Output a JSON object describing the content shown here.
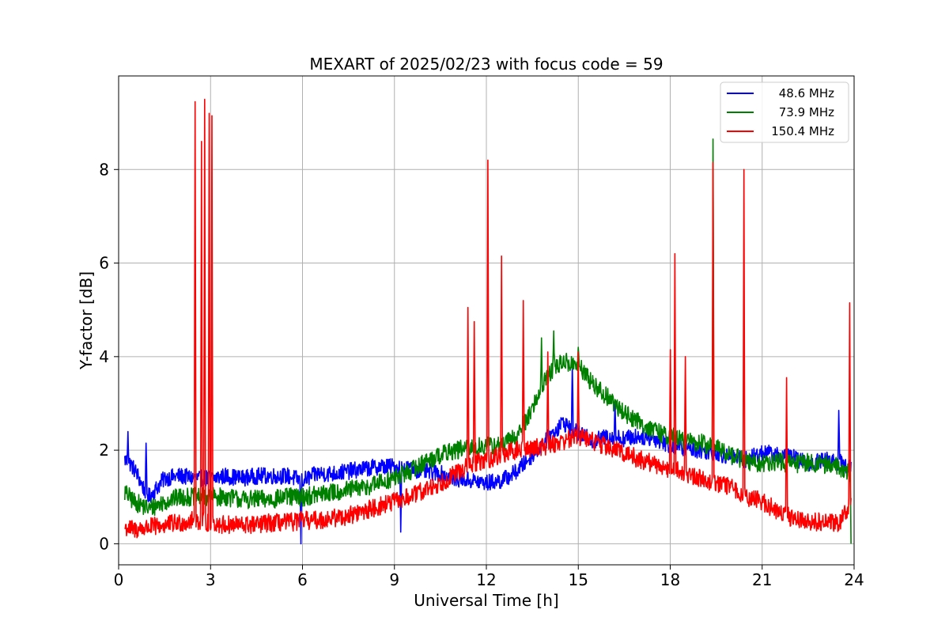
{
  "chart_data": {
    "type": "line",
    "title": "MEXART of 2025/02/23 with focus code = 59",
    "xlabel": "Universal Time [h]",
    "ylabel": "Y-factor [dB]",
    "xlim": [
      0,
      24
    ],
    "ylim": [
      -0.45,
      10.0
    ],
    "xticks": [
      0,
      3,
      6,
      9,
      12,
      15,
      18,
      21,
      24
    ],
    "yticks": [
      0,
      2,
      4,
      6,
      8
    ],
    "grid": true,
    "legend_position": "top-right",
    "series": [
      {
        "name": "48.6 MHz",
        "color": "#0000ff",
        "x": [
          0.2,
          0.4,
          0.6,
          0.8,
          1.0,
          1.5,
          2.0,
          2.5,
          3.0,
          3.5,
          4.0,
          4.5,
          5.0,
          5.5,
          6.0,
          6.5,
          7.0,
          7.5,
          8.0,
          8.5,
          9.0,
          9.5,
          10.0,
          10.5,
          11.0,
          11.5,
          12.0,
          12.5,
          13.0,
          13.5,
          14.0,
          14.5,
          15.0,
          15.5,
          16.0,
          16.5,
          17.0,
          17.5,
          18.0,
          18.5,
          19.0,
          19.5,
          20.0,
          20.5,
          21.0,
          21.5,
          22.0,
          22.5,
          23.0,
          23.5,
          23.9
        ],
        "y": [
          1.8,
          1.7,
          1.5,
          1.2,
          1.0,
          1.4,
          1.45,
          1.4,
          1.4,
          1.45,
          1.4,
          1.45,
          1.45,
          1.45,
          1.35,
          1.5,
          1.5,
          1.55,
          1.6,
          1.65,
          1.65,
          1.6,
          1.55,
          1.5,
          1.4,
          1.35,
          1.3,
          1.35,
          1.55,
          1.9,
          2.25,
          2.6,
          2.35,
          2.2,
          2.3,
          2.25,
          2.3,
          2.25,
          2.1,
          2.05,
          2.0,
          1.95,
          1.85,
          1.8,
          1.95,
          1.9,
          1.85,
          1.7,
          1.8,
          1.75,
          1.6
        ],
        "noise": 0.18,
        "spikes": [
          [
            0.3,
            2.4
          ],
          [
            0.9,
            2.15
          ],
          [
            5.95,
            0.0
          ],
          [
            9.2,
            0.25
          ],
          [
            14.8,
            3.8
          ],
          [
            16.2,
            3.0
          ],
          [
            23.5,
            2.85
          ]
        ]
      },
      {
        "name": "73.9 MHz",
        "color": "#008000",
        "x": [
          0.2,
          0.5,
          1.0,
          1.5,
          2.0,
          2.5,
          3.0,
          3.5,
          4.0,
          4.5,
          5.0,
          5.5,
          6.0,
          6.5,
          7.0,
          7.5,
          8.0,
          8.5,
          9.0,
          9.5,
          10.0,
          10.5,
          11.0,
          11.5,
          12.0,
          12.5,
          13.0,
          13.5,
          14.0,
          14.5,
          15.0,
          15.5,
          16.0,
          16.5,
          17.0,
          17.5,
          18.0,
          18.5,
          19.0,
          19.5,
          20.0,
          20.5,
          21.0,
          21.5,
          22.0,
          22.5,
          23.0,
          23.5,
          23.9
        ],
        "y": [
          1.1,
          0.9,
          0.75,
          0.9,
          1.0,
          1.0,
          1.0,
          1.0,
          0.95,
          0.95,
          0.95,
          1.0,
          1.0,
          1.05,
          1.1,
          1.15,
          1.2,
          1.3,
          1.4,
          1.55,
          1.75,
          1.9,
          2.0,
          2.05,
          2.1,
          2.1,
          2.3,
          2.9,
          3.6,
          3.9,
          3.8,
          3.4,
          3.1,
          2.8,
          2.6,
          2.4,
          2.3,
          2.2,
          2.15,
          2.05,
          1.9,
          1.75,
          1.7,
          1.75,
          1.7,
          1.75,
          1.7,
          1.65,
          1.5
        ],
        "noise": 0.2,
        "spikes": [
          [
            14.2,
            4.55
          ],
          [
            13.8,
            4.4
          ],
          [
            15.0,
            4.2
          ],
          [
            19.4,
            8.65
          ],
          [
            23.9,
            0.0
          ]
        ]
      },
      {
        "name": "150.4 MHz",
        "color": "#ff0000",
        "x": [
          0.2,
          0.5,
          1.0,
          1.5,
          2.0,
          2.5,
          3.0,
          3.5,
          4.0,
          4.5,
          5.0,
          5.5,
          6.0,
          6.5,
          7.0,
          7.5,
          8.0,
          8.5,
          9.0,
          9.5,
          10.0,
          10.5,
          11.0,
          11.5,
          12.0,
          12.5,
          13.0,
          13.5,
          14.0,
          14.5,
          15.0,
          15.5,
          16.0,
          16.5,
          17.0,
          17.5,
          18.0,
          18.5,
          19.0,
          19.5,
          20.0,
          20.5,
          21.0,
          21.5,
          22.0,
          22.5,
          23.0,
          23.5,
          23.9
        ],
        "y": [
          0.35,
          0.3,
          0.35,
          0.4,
          0.45,
          0.5,
          0.45,
          0.4,
          0.4,
          0.4,
          0.45,
          0.45,
          0.5,
          0.5,
          0.55,
          0.6,
          0.7,
          0.8,
          0.9,
          1.0,
          1.15,
          1.3,
          1.5,
          1.7,
          1.8,
          1.9,
          2.0,
          2.05,
          2.1,
          2.2,
          2.3,
          2.2,
          2.05,
          1.95,
          1.8,
          1.7,
          1.6,
          1.5,
          1.4,
          1.3,
          1.2,
          1.0,
          0.9,
          0.7,
          0.55,
          0.5,
          0.45,
          0.45,
          0.9
        ],
        "noise": 0.2,
        "spikes": [
          [
            2.5,
            9.45
          ],
          [
            2.7,
            8.6
          ],
          [
            2.8,
            9.5
          ],
          [
            2.95,
            9.2
          ],
          [
            3.05,
            9.15
          ],
          [
            11.4,
            5.05
          ],
          [
            11.6,
            4.75
          ],
          [
            12.05,
            8.2
          ],
          [
            12.5,
            6.15
          ],
          [
            13.2,
            5.2
          ],
          [
            14.0,
            4.1
          ],
          [
            15.0,
            4.1
          ],
          [
            18.0,
            4.15
          ],
          [
            18.15,
            6.2
          ],
          [
            18.5,
            4.0
          ],
          [
            19.4,
            8.15
          ],
          [
            20.4,
            8.0
          ],
          [
            21.8,
            3.55
          ],
          [
            23.85,
            5.15
          ]
        ]
      }
    ]
  }
}
